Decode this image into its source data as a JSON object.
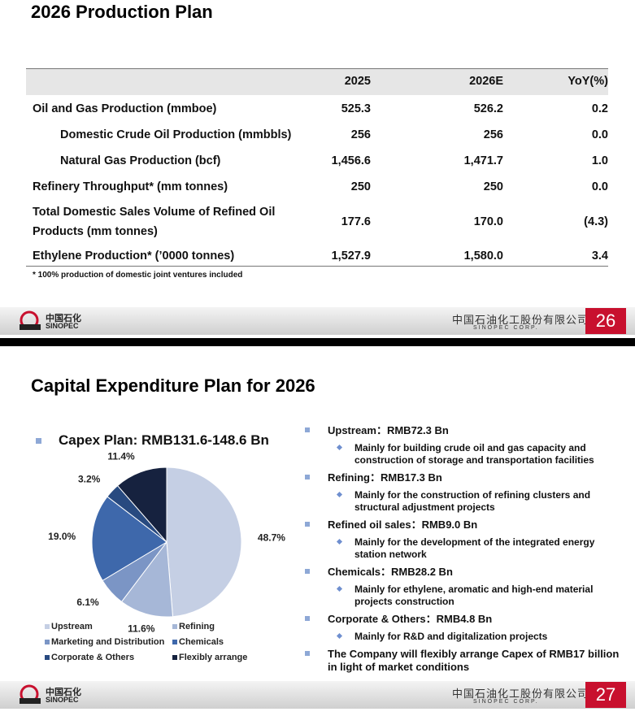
{
  "slides": [
    {
      "title": "2026 Production Plan",
      "table": {
        "header": [
          "2025",
          "2026E",
          "YoY(%)"
        ],
        "rows": [
          [
            "Oil and Gas Production (mmboe)",
            "525.3",
            "526.2",
            "0.2"
          ],
          [
            "Domestic Crude Oil Production (mmbbls)",
            "256",
            "256",
            "0.0"
          ],
          [
            "Natural Gas Production (bcf)",
            "1,456.6",
            "1,471.7",
            "1.0"
          ],
          [
            "Refinery Throughput* (mm tonnes)",
            "250",
            "250",
            "0.0"
          ],
          [
            "Total  Domestic Sales Volume of Refined Oil Products (mm tonnes)",
            "177.6",
            "170.0",
            "(4.3)"
          ],
          [
            "Ethylene Production* (’0000 tonnes)",
            "1,527.9",
            "1,580.0",
            "3.4"
          ]
        ]
      },
      "footnote": "* 100% production of domestic joint ventures included",
      "footer": {
        "logo_cn": "中国石化",
        "logo_en": "SINOPEC",
        "company_cn": "中国石油化工股份有限公司",
        "company_en": "SINOPEC CORP.",
        "page": "26"
      }
    },
    {
      "title": "Capital Expenditure Plan for 2026",
      "capex_heading": "Capex Plan: RMB131.6-148.6 Bn",
      "pie": {
        "categories": [
          "Upstream",
          "Refining",
          "Marketing and Distribution",
          "Chemicals",
          "Corporate & Others",
          "Flexibly arrange"
        ],
        "values": [
          48.7,
          11.6,
          6.1,
          19.0,
          3.2,
          11.4
        ],
        "value_labels": [
          "48.7%",
          "11.6%",
          "6.1%",
          "19.0%",
          "3.2%",
          "11.4%"
        ],
        "colors": [
          "#c5cfe4",
          "#a6b7d7",
          "#7b95c5",
          "#3e68ab",
          "#284a80",
          "#16223f"
        ]
      },
      "bullets": [
        {
          "head": "Upstream：RMB72.3 Bn",
          "sub": "Mainly for building crude oil and gas capacity and construction of storage and transportation facilities"
        },
        {
          "head": "Refining：RMB17.3 Bn",
          "sub": "Mainly for the construction of refining clusters and structural adjustment projects"
        },
        {
          "head": "Refined oil sales：RMB9.0 Bn",
          "sub": "Mainly for the development of  the integrated energy station network"
        },
        {
          "head": "Chemicals：RMB28.2 Bn",
          "sub": "Mainly for ethylene, aromatic and high-end material projects construction"
        },
        {
          "head": "Corporate & Others：RMB4.8 Bn",
          "sub": "Mainly for R&D and digitalization projects"
        },
        {
          "head": "The Company will flexibly arrange Capex of RMB17 billion in light of market conditions"
        }
      ],
      "footer": {
        "logo_cn": "中国石化",
        "logo_en": "SINOPEC",
        "company_cn": "中国石油化工股份有限公司",
        "company_en": "SINOPEC CORP.",
        "page": "27"
      }
    }
  ]
}
